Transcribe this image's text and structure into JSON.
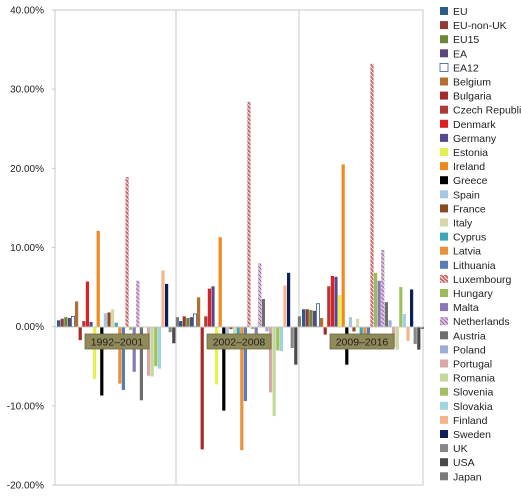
{
  "chart_data": {
    "type": "bar",
    "title": "",
    "xlabel": "",
    "ylabel": "",
    "ylim": [
      -0.2,
      0.4
    ],
    "y_ticks": [
      "40.00%",
      "30.00%",
      "20.00%",
      "10.00%",
      "0.00%",
      "-10.00%",
      "-20.00%"
    ],
    "categories": [
      "1992–2001",
      "2002–2008",
      "2009–2016"
    ],
    "grid": "vertical separators between periods",
    "legend_position": "right",
    "series": [
      {
        "name": "EU",
        "color": "#2e5c8a",
        "hatch": false,
        "values": [
          0.008,
          0.007,
          0.022
        ]
      },
      {
        "name": "EU-non-UK",
        "color": "#8e3a36",
        "hatch": false,
        "values": [
          0.01,
          0.013,
          0.022
        ]
      },
      {
        "name": "EU15",
        "color": "#6b8a36",
        "hatch": false,
        "values": [
          0.012,
          0.011,
          0.021
        ]
      },
      {
        "name": "EA",
        "color": "#5a4780",
        "hatch": false,
        "values": [
          0.011,
          0.012,
          0.02
        ]
      },
      {
        "name": "EA12",
        "color": "#ffffff",
        "hatch": false,
        "values": [
          0.013,
          0.016,
          0.029
        ]
      },
      {
        "name": "Belgium",
        "color": "#b46f2f",
        "hatch": false,
        "values": [
          0.032,
          0.037,
          0.011
        ]
      },
      {
        "name": "Bulgaria",
        "color": "#a52a2a",
        "hatch": false,
        "values": [
          -0.017,
          -0.155,
          -0.01
        ]
      },
      {
        "name": "Czech Republic",
        "color": "#b03a3a",
        "hatch": false,
        "values": [
          0.007,
          0.013,
          0.051
        ]
      },
      {
        "name": "Denmark",
        "color": "#e02020",
        "hatch": false,
        "values": [
          0.057,
          0.048,
          0.064
        ]
      },
      {
        "name": "Germany",
        "color": "#554a8e",
        "hatch": false,
        "values": [
          0.006,
          0.051,
          0.063
        ]
      },
      {
        "name": "Estonia",
        "color": "#e6f04a",
        "hatch": false,
        "values": [
          -0.066,
          -0.073,
          0.04
        ]
      },
      {
        "name": "Ireland",
        "color": "#ee8a1e",
        "hatch": false,
        "values": [
          0.121,
          0.113,
          0.205
        ]
      },
      {
        "name": "Greece",
        "color": "#000000",
        "hatch": false,
        "values": [
          -0.087,
          -0.106,
          -0.048
        ]
      },
      {
        "name": "Spain",
        "color": "#a6c6e6",
        "hatch": false,
        "values": [
          0.017,
          -0.01,
          0.012
        ]
      },
      {
        "name": "France",
        "color": "#8b4a1e",
        "hatch": false,
        "values": [
          0.018,
          -0.003,
          -0.006
        ]
      },
      {
        "name": "Italy",
        "color": "#d6d8a8",
        "hatch": false,
        "values": [
          0.022,
          -0.02,
          0.01
        ]
      },
      {
        "name": "Cyprus",
        "color": "#3aa6b6",
        "hatch": false,
        "values": [
          0.005,
          -0.025,
          -0.01
        ]
      },
      {
        "name": "Latvia",
        "color": "#e8923c",
        "hatch": false,
        "values": [
          -0.072,
          -0.156,
          -0.018
        ]
      },
      {
        "name": "Lithuania",
        "color": "#5a7ab8",
        "hatch": false,
        "values": [
          -0.08,
          -0.094,
          -0.022
        ]
      },
      {
        "name": "Luxembourg",
        "color": "#c86a6a",
        "hatch": true,
        "values": [
          0.189,
          0.284,
          0.332
        ]
      },
      {
        "name": "Hungary",
        "color": "#9cbb5a",
        "hatch": false,
        "values": [
          -0.004,
          -0.003,
          0.068
        ]
      },
      {
        "name": "Malta",
        "color": "#8878b8",
        "hatch": false,
        "values": [
          -0.057,
          -0.025,
          0.058
        ]
      },
      {
        "name": "Netherlands",
        "color": "#d8c0dc",
        "hatch": true,
        "values": [
          0.058,
          0.08,
          0.097
        ]
      },
      {
        "name": "Austria",
        "color": "#6e6e6e",
        "hatch": false,
        "values": [
          -0.093,
          0.035,
          0.031
        ]
      },
      {
        "name": "Poland",
        "color": "#9aaed6",
        "hatch": false,
        "values": [
          0.0,
          -0.006,
          0.008
        ]
      },
      {
        "name": "Portugal",
        "color": "#d8a8a8",
        "hatch": false,
        "values": [
          -0.062,
          -0.083,
          -0.026
        ]
      },
      {
        "name": "Romania",
        "color": "#c4d89a",
        "hatch": false,
        "values": [
          -0.063,
          -0.113,
          -0.029
        ]
      },
      {
        "name": "Slovenia",
        "color": "#a0c060",
        "hatch": false,
        "values": [
          -0.05,
          -0.03,
          0.05
        ]
      },
      {
        "name": "Slovakia",
        "color": "#9cd4e0",
        "hatch": false,
        "values": [
          -0.053,
          -0.031,
          0.016
        ]
      },
      {
        "name": "Finland",
        "color": "#f5b48c",
        "hatch": false,
        "values": [
          0.071,
          0.052,
          -0.018
        ]
      },
      {
        "name": "Sweden",
        "color": "#0a1f5c",
        "hatch": false,
        "values": [
          0.054,
          0.068,
          0.047
        ]
      },
      {
        "name": "UK",
        "color": "#888888",
        "hatch": false,
        "values": [
          -0.007,
          -0.027,
          -0.022
        ]
      },
      {
        "name": "USA",
        "color": "#4a4a4a",
        "hatch": false,
        "values": [
          -0.021,
          -0.048,
          -0.029
        ]
      },
      {
        "name": "Japan",
        "color": "#7a7a7a",
        "hatch": false,
        "values": [
          0.012,
          0.013,
          -0.003
        ]
      }
    ]
  }
}
